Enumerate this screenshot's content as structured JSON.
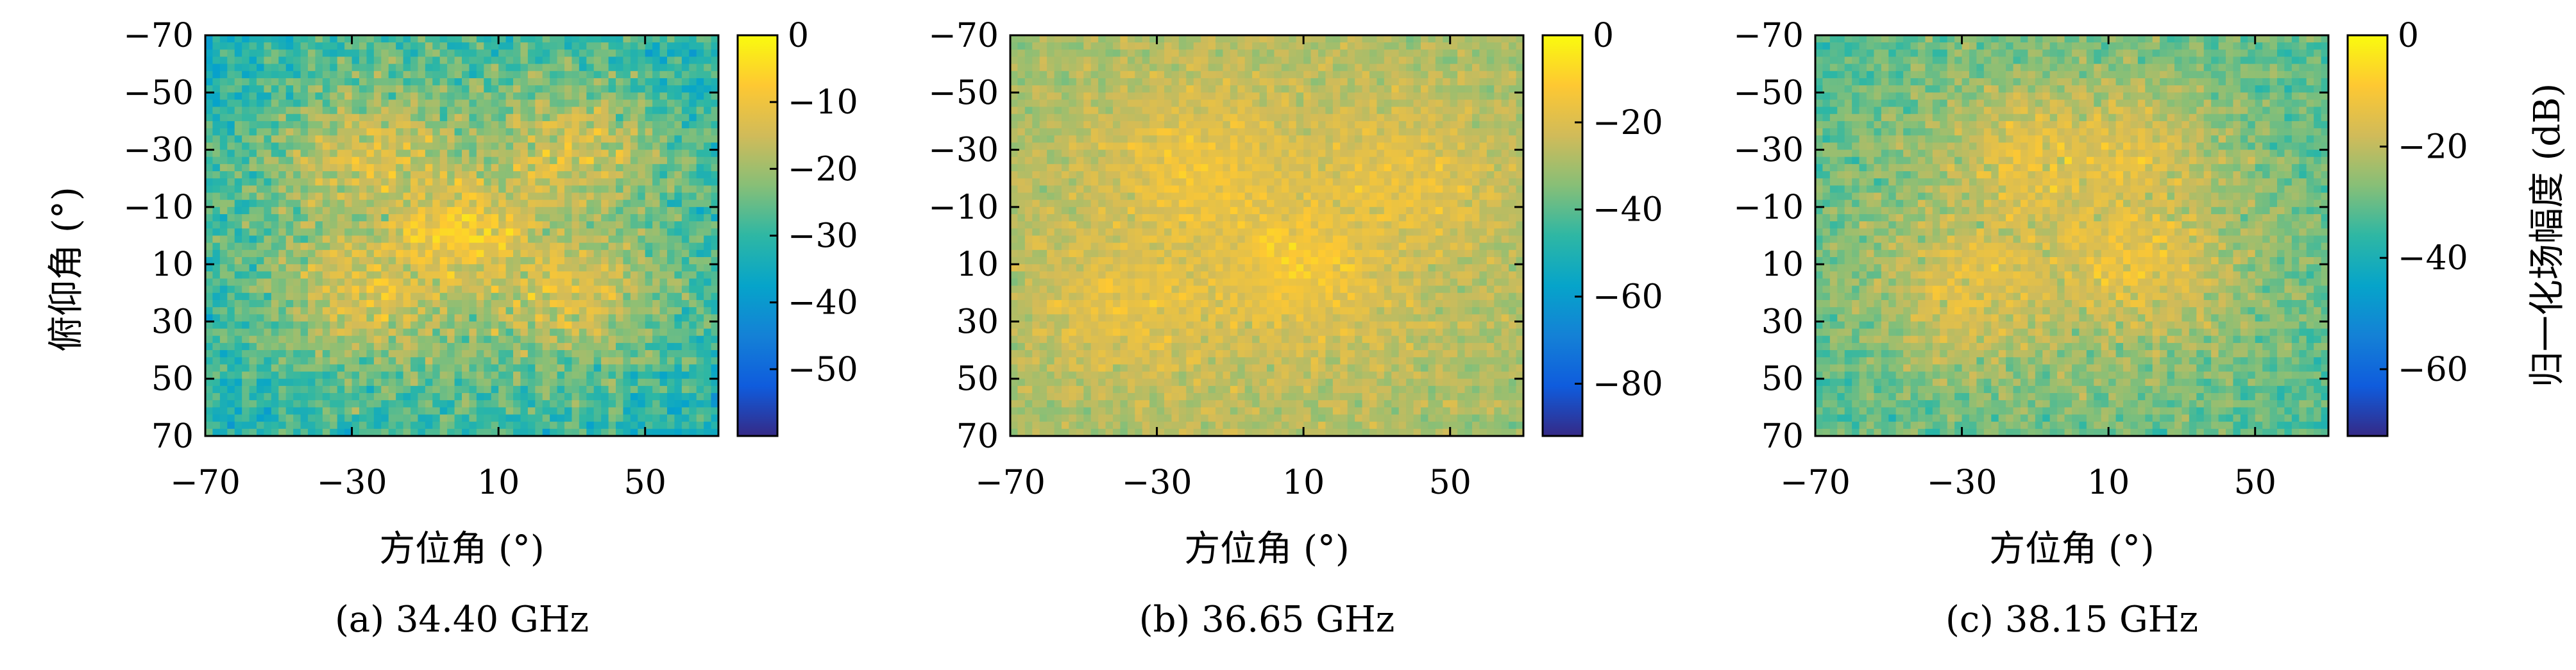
{
  "figure": {
    "colormap": "parula",
    "colormap_stops": [
      "#352a87",
      "#0f5cdd",
      "#1481d6",
      "#06a4ca",
      "#2eb7a4",
      "#87bf77",
      "#d1bb59",
      "#fec832",
      "#f9fb0e"
    ],
    "y_axis_label": "俯仰角 (°)",
    "colorbar_label": "归一化场幅度 (dB)"
  },
  "chart_data": [
    {
      "type": "heatmap",
      "subtitle": "(a) 34.40 GHz",
      "xlabel": "方位角 (°)",
      "ylabel": "俯仰角 (°)",
      "xlim": [
        -70,
        70
      ],
      "ylim": [
        -70,
        70
      ],
      "y_reversed": true,
      "xticks": [
        "−70",
        "−30",
        "10",
        "50"
      ],
      "xtick_values": [
        -70,
        -30,
        10,
        50
      ],
      "yticks": [
        "−70",
        "−50",
        "−30",
        "−10",
        "10",
        "30",
        "50",
        "70"
      ],
      "ytick_values": [
        -70,
        -50,
        -30,
        -10,
        10,
        30,
        50,
        70
      ],
      "zlim": [
        -60,
        0
      ],
      "colorbar_ticks": [
        "0",
        "−10",
        "−20",
        "−30",
        "−40",
        "−50"
      ],
      "colorbar_tick_values": [
        0,
        -10,
        -20,
        -30,
        -40,
        -50
      ],
      "colorbar_label": "",
      "hotspots": [
        [
          -28,
          -30
        ],
        [
          32,
          -30
        ],
        [
          -28,
          20
        ],
        [
          32,
          20
        ],
        [
          0,
          0
        ]
      ],
      "peak_level_db": -8,
      "edge_level_db": -32,
      "noise_db": 10
    },
    {
      "type": "heatmap",
      "subtitle": "(b) 36.65 GHz",
      "xlabel": "方位角 (°)",
      "ylabel": "",
      "xlim": [
        -70,
        70
      ],
      "ylim": [
        -70,
        70
      ],
      "y_reversed": true,
      "xticks": [
        "−70",
        "−30",
        "10",
        "50"
      ],
      "xtick_values": [
        -70,
        -30,
        10,
        50
      ],
      "yticks": [
        "−70",
        "−50",
        "−30",
        "−10",
        "10",
        "30",
        "50",
        "70"
      ],
      "ytick_values": [
        -70,
        -50,
        -30,
        -10,
        10,
        30,
        50,
        70
      ],
      "zlim": [
        -92,
        0
      ],
      "colorbar_ticks": [
        "0",
        "−20",
        "−40",
        "−60",
        "−80"
      ],
      "colorbar_tick_values": [
        0,
        -20,
        -40,
        -60,
        -80
      ],
      "colorbar_label": "",
      "hotspots": [
        [
          -20,
          -25
        ],
        [
          10,
          10
        ],
        [
          40,
          -20
        ],
        [
          -40,
          25
        ]
      ],
      "peak_level_db": -12,
      "edge_level_db": -30,
      "noise_db": 9
    },
    {
      "type": "heatmap",
      "subtitle": "(c) 38.15 GHz",
      "xlabel": "方位角 (°)",
      "ylabel": "",
      "xlim": [
        -70,
        70
      ],
      "ylim": [
        -70,
        70
      ],
      "y_reversed": true,
      "xticks": [
        "−70",
        "−30",
        "10",
        "50"
      ],
      "xtick_values": [
        -70,
        -30,
        10,
        50
      ],
      "yticks": [
        "−70",
        "−50",
        "−30",
        "−10",
        "10",
        "30",
        "50",
        "70"
      ],
      "ytick_values": [
        -70,
        -50,
        -30,
        -10,
        10,
        30,
        50,
        70
      ],
      "zlim": [
        -72,
        0
      ],
      "colorbar_ticks": [
        "0",
        "−20",
        "−40",
        "−60"
      ],
      "colorbar_tick_values": [
        0,
        -20,
        -40,
        -60
      ],
      "colorbar_label": "归一化场幅度 (dB)",
      "hotspots": [
        [
          15,
          -30
        ],
        [
          -30,
          20
        ],
        [
          -10,
          -30
        ],
        [
          20,
          10
        ]
      ],
      "peak_level_db": -10,
      "edge_level_db": -32,
      "noise_db": 9
    }
  ]
}
